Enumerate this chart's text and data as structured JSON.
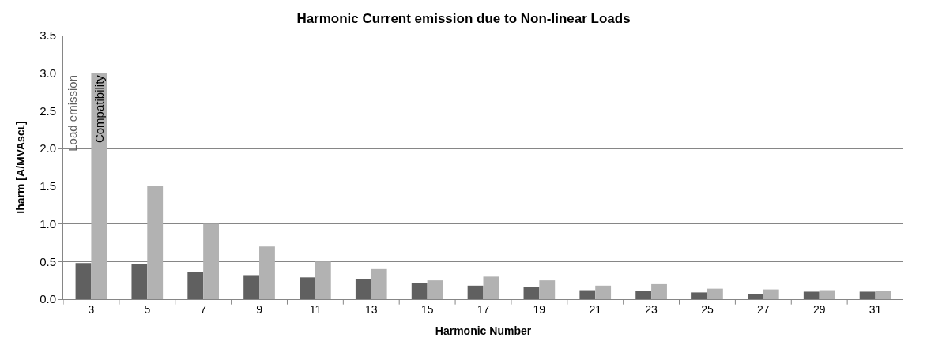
{
  "chart_data": {
    "type": "bar",
    "title": "Harmonic Current emission due to Non-linear Loads",
    "xlabel": "Harmonic Number",
    "ylabel": "Iharm [A/MVAsᴄʟ]",
    "categories": [
      "3",
      "5",
      "7",
      "9",
      "11",
      "13",
      "15",
      "17",
      "19",
      "21",
      "23",
      "25",
      "27",
      "29",
      "31"
    ],
    "series": [
      {
        "name": "Load emission",
        "color": "#606060",
        "values": [
          0.48,
          0.47,
          0.36,
          0.32,
          0.29,
          0.27,
          0.22,
          0.18,
          0.16,
          0.12,
          0.11,
          0.09,
          0.07,
          0.1,
          0.1
        ]
      },
      {
        "name": "Compatibility",
        "color": "#b2b2b2",
        "values": [
          3.0,
          1.5,
          1.0,
          0.7,
          0.5,
          0.4,
          0.25,
          0.3,
          0.25,
          0.18,
          0.2,
          0.14,
          0.13,
          0.12,
          0.11
        ]
      }
    ],
    "ylim": [
      0,
      3.5
    ],
    "yticks": [
      {
        "value": 0,
        "label": "0.0"
      },
      {
        "value": 0.5,
        "label": "0.5"
      },
      {
        "value": 1,
        "label": "1.0"
      },
      {
        "value": 1.5,
        "label": "1.5"
      },
      {
        "value": 2,
        "label": "2.0"
      },
      {
        "value": 2.5,
        "label": "2.5"
      },
      {
        "value": 3,
        "label": "3.0"
      },
      {
        "value": 3.5,
        "label": "3.5"
      }
    ],
    "grid": "y",
    "legend": false
  }
}
